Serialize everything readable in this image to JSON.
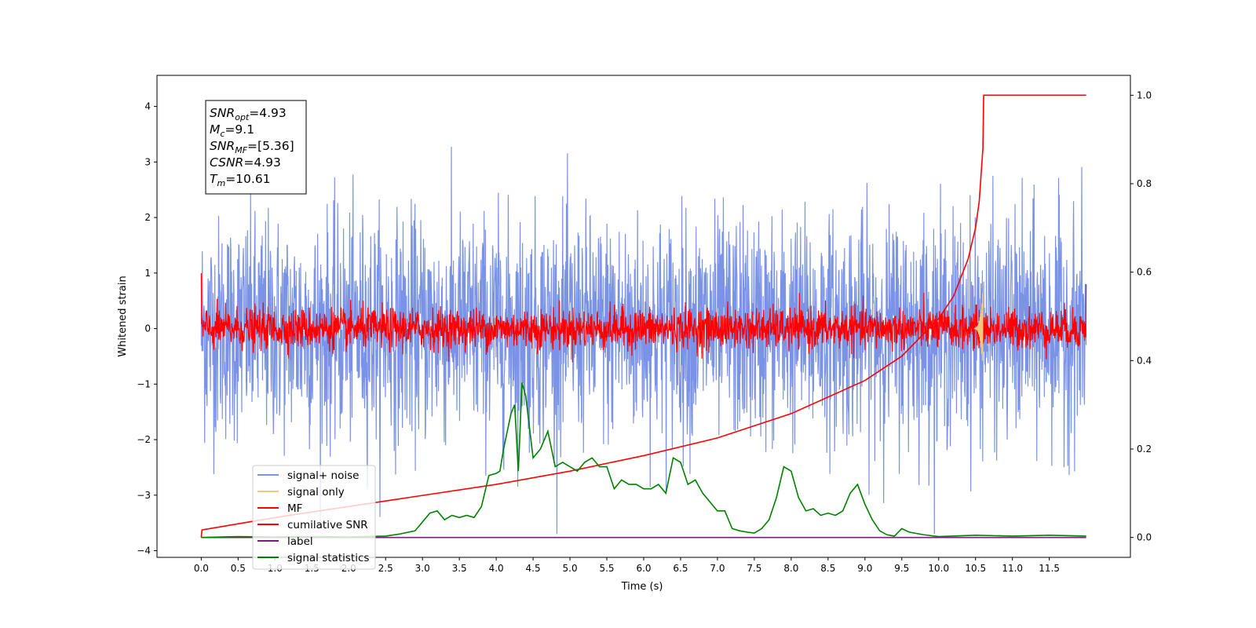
{
  "chart_data": {
    "type": "line",
    "xlabel": "Time (s)",
    "ylabel": "Whitened strain",
    "xlim": [
      -0.6,
      12.6
    ],
    "ylim_left": [
      -4.12,
      4.56
    ],
    "ylim_right": [
      -0.045,
      1.045
    ],
    "x_ticks": [
      "0.0",
      "0.5",
      "1.0",
      "1.5",
      "2.0",
      "2.5",
      "3.0",
      "3.5",
      "4.0",
      "4.5",
      "5.0",
      "5.5",
      "6.0",
      "6.5",
      "7.0",
      "7.5",
      "8.0",
      "8.5",
      "9.0",
      "9.5",
      "10.0",
      "10.5",
      "11.0",
      "11.5"
    ],
    "y_ticks_left": [
      "4",
      "3",
      "2",
      "1",
      "0",
      "−1",
      "−2",
      "−3",
      "−4"
    ],
    "y_ticks_right": [
      "1.0",
      "0.8",
      "0.6",
      "0.4",
      "0.2",
      "0.0"
    ],
    "info_box": [
      {
        "sym": "SNR",
        "sub": "opt",
        "val": "=4.93"
      },
      {
        "sym": "M",
        "sub": "c",
        "val": "=9.1"
      },
      {
        "sym": "SNR",
        "sub": "MF",
        "val": "=[5.36]"
      },
      {
        "sym": "CSNR",
        "sub": "",
        "val": "=4.93"
      },
      {
        "sym": "T",
        "sub": "m",
        "val": "=10.61"
      }
    ],
    "legend": {
      "placement": "lower-left",
      "entries": [
        {
          "label": "signal+ noise",
          "color": "#7b93e6"
        },
        {
          "label": "signal only",
          "color": "#f5c77a"
        },
        {
          "label": "MF",
          "color": "#ff0000"
        },
        {
          "label": "cumilative SNR",
          "color": "#ff0000"
        },
        {
          "label": "label",
          "color": "#7b1b7b"
        },
        {
          "label": "signal statistics",
          "color": "#008000"
        }
      ]
    },
    "series": [
      {
        "name": "signal+ noise",
        "axis": "left",
        "color": "#7b93e6",
        "kind": "gaussian-noise",
        "x_range": [
          0,
          12
        ],
        "std": 1.0,
        "peak_max": 4.15,
        "peak_min": -3.7
      },
      {
        "name": "signal only",
        "axis": "left",
        "color": "#f5c77a",
        "kind": "chirp-burst",
        "center_x": 10.6,
        "amplitude": 0.7
      },
      {
        "name": "MF",
        "axis": "left",
        "color": "#ff0000",
        "kind": "noise",
        "x_range": [
          0,
          12
        ],
        "std": 0.18,
        "endpoints": [
          1.0,
          0.8
        ]
      },
      {
        "name": "cumilative SNR",
        "axis": "right",
        "color": "#ff0000",
        "x": [
          0,
          0.01,
          1,
          2,
          3,
          4,
          5,
          6,
          7,
          8,
          9,
          9.5,
          10,
          10.2,
          10.4,
          10.5,
          10.55,
          10.6,
          10.61,
          12
        ],
        "y": [
          0.0,
          0.017,
          0.045,
          0.07,
          0.095,
          0.12,
          0.15,
          0.185,
          0.225,
          0.28,
          0.355,
          0.41,
          0.495,
          0.545,
          0.63,
          0.7,
          0.76,
          0.88,
          1.0,
          1.0
        ]
      },
      {
        "name": "label",
        "axis": "right",
        "color": "#7b1b7b",
        "x": [
          0,
          12
        ],
        "y": [
          0.0,
          0.0
        ]
      },
      {
        "name": "signal statistics",
        "axis": "right",
        "color": "#008000",
        "x": [
          0,
          0.5,
          1,
          1.5,
          2,
          2.5,
          2.7,
          2.9,
          3.0,
          3.1,
          3.2,
          3.3,
          3.4,
          3.5,
          3.6,
          3.7,
          3.8,
          3.9,
          4.0,
          4.05,
          4.1,
          4.2,
          4.25,
          4.3,
          4.35,
          4.4,
          4.5,
          4.6,
          4.7,
          4.8,
          4.9,
          5.0,
          5.1,
          5.2,
          5.3,
          5.4,
          5.5,
          5.6,
          5.7,
          5.8,
          5.9,
          6.0,
          6.1,
          6.2,
          6.3,
          6.4,
          6.5,
          6.6,
          6.7,
          6.8,
          6.9,
          7.0,
          7.1,
          7.2,
          7.3,
          7.4,
          7.5,
          7.6,
          7.7,
          7.8,
          7.9,
          8.0,
          8.1,
          8.2,
          8.3,
          8.4,
          8.5,
          8.6,
          8.7,
          8.8,
          8.9,
          9.0,
          9.1,
          9.2,
          9.3,
          9.4,
          9.5,
          9.6,
          9.8,
          10.0,
          10.5,
          11.0,
          11.5,
          12.0
        ],
        "y": [
          0.0,
          0.002,
          0.001,
          0.002,
          0.001,
          0.003,
          0.008,
          0.015,
          0.035,
          0.055,
          0.06,
          0.04,
          0.05,
          0.045,
          0.05,
          0.045,
          0.07,
          0.14,
          0.145,
          0.15,
          0.2,
          0.28,
          0.3,
          0.15,
          0.35,
          0.32,
          0.18,
          0.2,
          0.24,
          0.16,
          0.17,
          0.16,
          0.15,
          0.17,
          0.18,
          0.16,
          0.16,
          0.11,
          0.13,
          0.12,
          0.12,
          0.11,
          0.11,
          0.12,
          0.1,
          0.18,
          0.17,
          0.12,
          0.13,
          0.1,
          0.08,
          0.06,
          0.06,
          0.02,
          0.015,
          0.012,
          0.01,
          0.02,
          0.04,
          0.09,
          0.16,
          0.15,
          0.09,
          0.06,
          0.065,
          0.05,
          0.055,
          0.05,
          0.06,
          0.1,
          0.12,
          0.075,
          0.04,
          0.015,
          0.006,
          0.003,
          0.02,
          0.012,
          0.006,
          0.002,
          0.005,
          0.003,
          0.005,
          0.003
        ]
      }
    ]
  }
}
